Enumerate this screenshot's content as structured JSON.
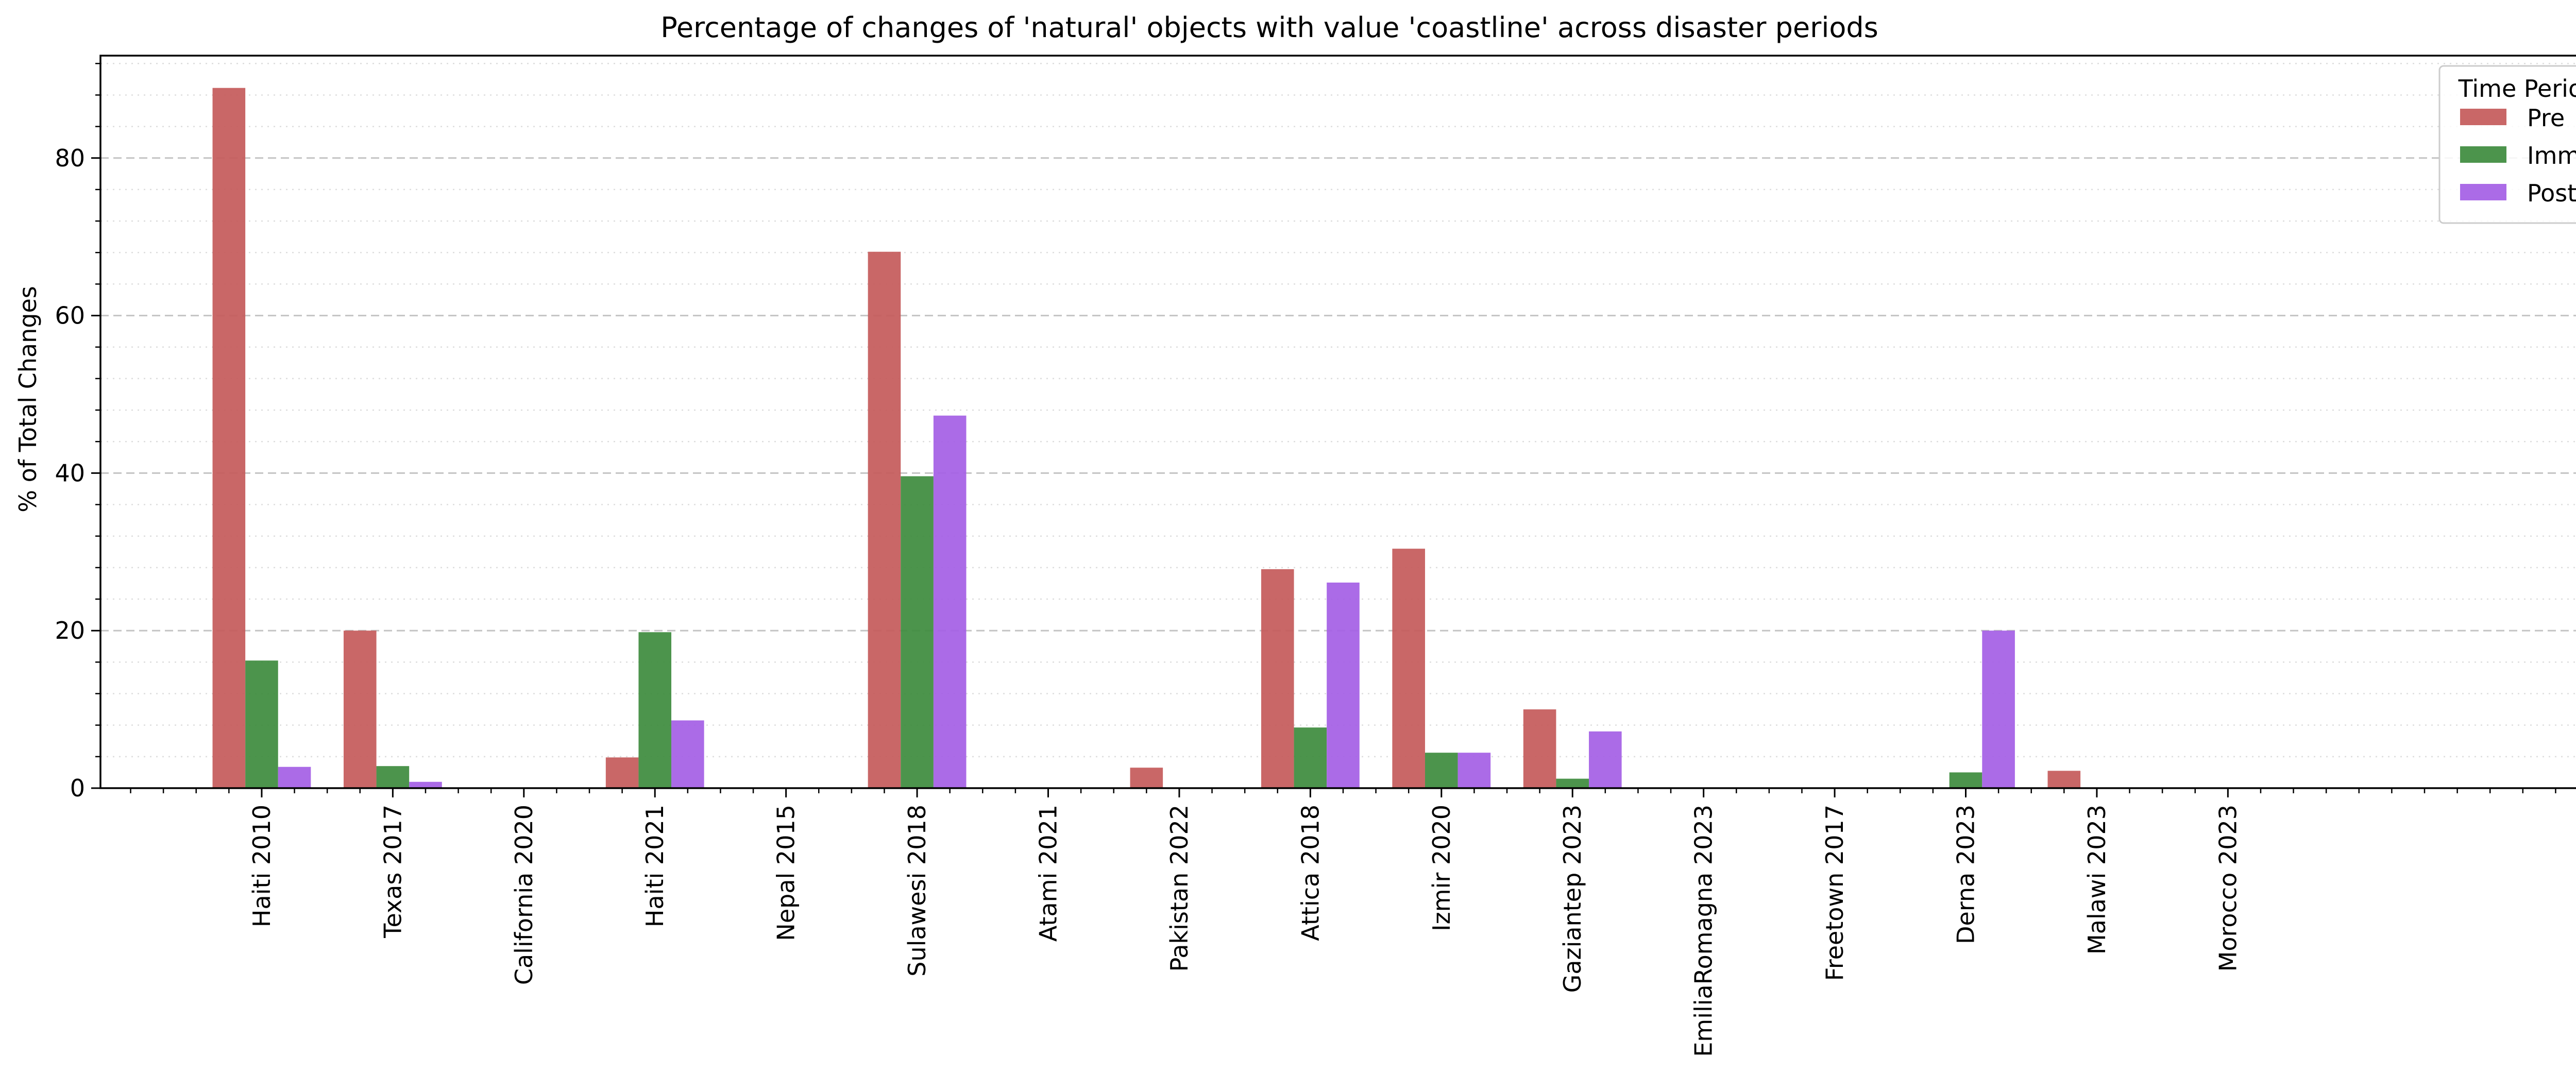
{
  "chart_data": {
    "type": "bar",
    "title": "Percentage of changes of 'natural' objects with value 'coastline' across disaster periods",
    "xlabel": "",
    "ylabel": "% of Total Changes",
    "ylim": [
      0,
      93
    ],
    "yticks": [
      0,
      20,
      40,
      60,
      80
    ],
    "grid": true,
    "legend": {
      "title": "Time Period",
      "placement": "top-right"
    },
    "categories": [
      "Haiti 2010",
      "Texas 2017",
      "California 2020",
      "Haiti 2021",
      "Nepal 2015",
      "Sulawesi 2018",
      "Atami 2021",
      "Pakistan 2022",
      "Attica 2018",
      "Izmir 2020",
      "Gaziantep 2023",
      "EmiliaRomagna 2023",
      "Freetown 2017",
      "Derna 2023",
      "Malawi 2023",
      "Morocco 2023"
    ],
    "series": [
      {
        "name": "Pre",
        "color": "#c45a5a",
        "values": [
          88.9,
          20.0,
          0,
          3.9,
          0,
          68.1,
          0,
          2.6,
          27.8,
          30.4,
          10.0,
          0,
          0,
          0,
          2.2,
          0
        ]
      },
      {
        "name": "Imm",
        "color": "#3d8b3d",
        "values": [
          16.2,
          2.8,
          0,
          19.8,
          0,
          39.6,
          0,
          0,
          7.7,
          4.5,
          1.2,
          0,
          0,
          2.0,
          0,
          0
        ]
      },
      {
        "name": "Post",
        "color": "#a45ee5",
        "values": [
          2.7,
          0.8,
          0,
          8.6,
          0,
          47.3,
          0,
          0,
          26.1,
          4.5,
          7.2,
          0,
          0,
          20.0,
          0,
          0
        ]
      }
    ]
  }
}
